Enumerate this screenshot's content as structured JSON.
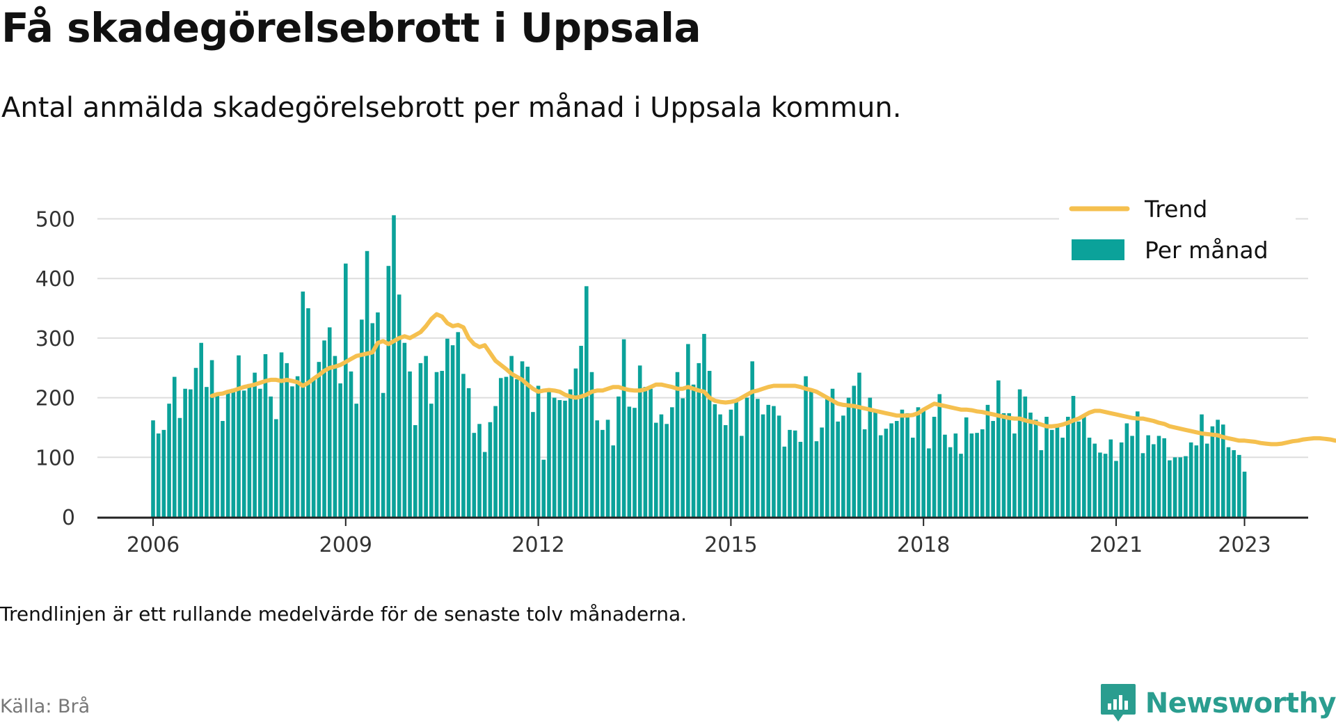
{
  "header": {
    "title": "Få skadegörelsebrott i Uppsala",
    "subtitle": "Antal anmälda skadegörelsebrott per månad i Uppsala kommun."
  },
  "footer": {
    "note": "Trendlinjen är ett rullande medelvärde för de senaste tolv månaderna.",
    "source": "Källa: Brå",
    "brand": "Newsworthy",
    "brand_icon": "newsworthy-logo-icon"
  },
  "colors": {
    "bar": "#0ba29a",
    "trend": "#f5c04f",
    "grid": "#dddddd",
    "axis": "#222222"
  },
  "chart_data": {
    "type": "bar",
    "title": "Få skadegörelsebrott i Uppsala",
    "xlabel": "",
    "ylabel": "",
    "ylim": [
      0,
      500
    ],
    "yticks": [
      0,
      100,
      200,
      300,
      400,
      500
    ],
    "xticks": [
      "2006",
      "2009",
      "2012",
      "2015",
      "2018",
      "2021",
      "2023"
    ],
    "start": "2006-01",
    "grid": true,
    "legend_position": "top-right",
    "series": [
      {
        "name": "Per månad",
        "type": "bar",
        "values": [
          162,
          140,
          146,
          190,
          235,
          166,
          215,
          214,
          250,
          292,
          218,
          263,
          205,
          161,
          212,
          215,
          271,
          212,
          223,
          242,
          215,
          273,
          202,
          164,
          276,
          258,
          219,
          236,
          378,
          350,
          230,
          260,
          296,
          318,
          270,
          224,
          425,
          244,
          190,
          331,
          446,
          325,
          343,
          208,
          421,
          506,
          373,
          292,
          244,
          154,
          258,
          270,
          190,
          243,
          245,
          299,
          288,
          310,
          240,
          216,
          141,
          156,
          109,
          159,
          186,
          233,
          235,
          270,
          231,
          261,
          252,
          176,
          220,
          96,
          212,
          200,
          196,
          195,
          214,
          249,
          287,
          387,
          243,
          162,
          146,
          163,
          120,
          202,
          298,
          185,
          183,
          254,
          218,
          215,
          158,
          172,
          156,
          184,
          243,
          199,
          290,
          222,
          258,
          307,
          245,
          189,
          172,
          154,
          180,
          196,
          136,
          200,
          261,
          198,
          172,
          188,
          186,
          170,
          118,
          146,
          145,
          126,
          236,
          215,
          127,
          150,
          198,
          215,
          160,
          170,
          200,
          220,
          242,
          147,
          200,
          180,
          137,
          148,
          157,
          161,
          180,
          174,
          133,
          184,
          178,
          115,
          168,
          206,
          138,
          117,
          140,
          106,
          167,
          140,
          141,
          147,
          188,
          161,
          229,
          174,
          174,
          140,
          214,
          202,
          175,
          163,
          112,
          168,
          146,
          155,
          133,
          168,
          203,
          160,
          170,
          133,
          123,
          108,
          106,
          130,
          94,
          125,
          157,
          136,
          177,
          107,
          137,
          122,
          136,
          132,
          95,
          100,
          100,
          102,
          125,
          120,
          172,
          123,
          152,
          163,
          155,
          117,
          112,
          104,
          76
        ],
        "color": "#0ba29a"
      },
      {
        "name": "Trend",
        "type": "line",
        "start_index": 11,
        "values": [
          203,
          206,
          207,
          210,
          212,
          215,
          218,
          220,
          222,
          225,
          228,
          230,
          230,
          228,
          230,
          228,
          226,
          220,
          225,
          232,
          238,
          245,
          250,
          252,
          255,
          260,
          265,
          270,
          272,
          274,
          276,
          292,
          295,
          290,
          295,
          300,
          303,
          300,
          305,
          310,
          320,
          332,
          340,
          336,
          325,
          320,
          322,
          318,
          300,
          290,
          285,
          288,
          275,
          262,
          255,
          248,
          240,
          235,
          230,
          222,
          215,
          210,
          212,
          213,
          212,
          210,
          205,
          202,
          200,
          202,
          205,
          210,
          212,
          212,
          215,
          218,
          218,
          215,
          213,
          212,
          212,
          214,
          218,
          222,
          222,
          220,
          218,
          215,
          215,
          218,
          215,
          212,
          210,
          200,
          195,
          193,
          192,
          193,
          195,
          200,
          205,
          210,
          212,
          215,
          218,
          220,
          220,
          220,
          220,
          220,
          218,
          215,
          213,
          210,
          205,
          200,
          195,
          190,
          188,
          187,
          186,
          184,
          182,
          180,
          178,
          176,
          174,
          172,
          170,
          170,
          170,
          171,
          174,
          180,
          185,
          190,
          188,
          186,
          184,
          182,
          180,
          180,
          179,
          177,
          176,
          174,
          172,
          170,
          168,
          166,
          165,
          165,
          162,
          160,
          158,
          155,
          152,
          152,
          153,
          155,
          158,
          162,
          165,
          170,
          175,
          178,
          178,
          176,
          174,
          172,
          170,
          168,
          166,
          165,
          165,
          163,
          161,
          158,
          156,
          152,
          150,
          148,
          146,
          144,
          142,
          140,
          139,
          138,
          137,
          134,
          132,
          130,
          128,
          128,
          127,
          126,
          124,
          123,
          122,
          122,
          123,
          125,
          127,
          128,
          130,
          131,
          132,
          132,
          131,
          130,
          128
        ]
      }
    ]
  }
}
